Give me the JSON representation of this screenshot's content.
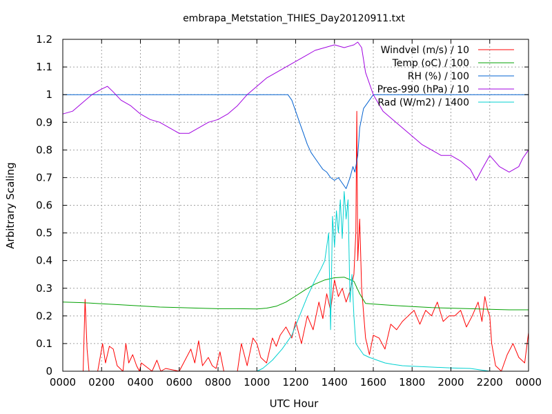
{
  "chart_data": {
    "type": "line",
    "title": "embrapa_Metstation_THIES_Day20120911.txt",
    "xlabel": "UTC Hour",
    "ylabel": "Arbitrary Scaling",
    "xlim": [
      0,
      24
    ],
    "ylim": [
      0,
      1.2
    ],
    "x_ticks": [
      {
        "v": 0,
        "label": "0000"
      },
      {
        "v": 2,
        "label": "0200"
      },
      {
        "v": 4,
        "label": "0400"
      },
      {
        "v": 6,
        "label": "0600"
      },
      {
        "v": 8,
        "label": "0800"
      },
      {
        "v": 10,
        "label": "1000"
      },
      {
        "v": 12,
        "label": "1200"
      },
      {
        "v": 14,
        "label": "1400"
      },
      {
        "v": 16,
        "label": "1600"
      },
      {
        "v": 18,
        "label": "1800"
      },
      {
        "v": 20,
        "label": "2000"
      },
      {
        "v": 22,
        "label": "2200"
      },
      {
        "v": 24,
        "label": "0000"
      }
    ],
    "y_ticks": [
      {
        "v": 0,
        "label": "0"
      },
      {
        "v": 0.1,
        "label": "0.1"
      },
      {
        "v": 0.2,
        "label": "0.2"
      },
      {
        "v": 0.3,
        "label": "0.3"
      },
      {
        "v": 0.4,
        "label": "0.4"
      },
      {
        "v": 0.5,
        "label": "0.5"
      },
      {
        "v": 0.6,
        "label": "0.6"
      },
      {
        "v": 0.7,
        "label": "0.7"
      },
      {
        "v": 0.8,
        "label": "0.8"
      },
      {
        "v": 0.9,
        "label": "0.9"
      },
      {
        "v": 1.0,
        "label": "1"
      },
      {
        "v": 1.1,
        "label": "1.1"
      },
      {
        "v": 1.2,
        "label": "1.2"
      }
    ],
    "grid": true,
    "legend_position": "top-right",
    "series": [
      {
        "name": "Windvel (m/s) / 10",
        "color": "#ff0000",
        "x": [
          0,
          1.05,
          1.15,
          1.25,
          1.35,
          1.8,
          2.05,
          2.2,
          2.4,
          2.6,
          2.8,
          3.1,
          3.25,
          3.4,
          3.6,
          3.8,
          3.95,
          4.05,
          4.6,
          4.85,
          5.05,
          5.3,
          6.0,
          6.6,
          6.8,
          7.0,
          7.2,
          7.5,
          7.7,
          7.9,
          8.1,
          8.3,
          9.0,
          9.2,
          9.5,
          9.8,
          10.0,
          10.2,
          10.5,
          10.8,
          11.0,
          11.2,
          11.5,
          11.8,
          12.0,
          12.3,
          12.6,
          12.9,
          13.2,
          13.4,
          13.6,
          13.8,
          14.0,
          14.2,
          14.4,
          14.6,
          14.8,
          15.0,
          15.1,
          15.15,
          15.2,
          15.3,
          15.4,
          15.6,
          15.8,
          16.0,
          16.3,
          16.6,
          16.9,
          17.2,
          17.5,
          17.8,
          18.1,
          18.4,
          18.7,
          19.0,
          19.3,
          19.6,
          19.9,
          20.2,
          20.5,
          20.8,
          21.1,
          21.4,
          21.6,
          21.75,
          21.9,
          22.0,
          22.1,
          22.3,
          22.6,
          22.9,
          23.2,
          23.5,
          23.8,
          24.0
        ],
        "y": [
          0,
          0,
          0.26,
          0.08,
          0,
          0,
          0.1,
          0.03,
          0.09,
          0.08,
          0.02,
          0,
          0.1,
          0.03,
          0.06,
          0.02,
          0,
          0.03,
          0,
          0.04,
          0,
          0.01,
          0,
          0.08,
          0.03,
          0.11,
          0.02,
          0.05,
          0.02,
          0.01,
          0.07,
          0,
          0,
          0.1,
          0.02,
          0.12,
          0.1,
          0.05,
          0.03,
          0.12,
          0.09,
          0.13,
          0.16,
          0.12,
          0.18,
          0.1,
          0.2,
          0.15,
          0.25,
          0.19,
          0.28,
          0.22,
          0.33,
          0.27,
          0.3,
          0.25,
          0.29,
          0.35,
          0.5,
          0.94,
          0.4,
          0.55,
          0.3,
          0.12,
          0.06,
          0.13,
          0.12,
          0.08,
          0.17,
          0.15,
          0.18,
          0.2,
          0.22,
          0.17,
          0.22,
          0.2,
          0.25,
          0.18,
          0.2,
          0.2,
          0.22,
          0.16,
          0.2,
          0.25,
          0.18,
          0.27,
          0.22,
          0.2,
          0.1,
          0.02,
          0,
          0.06,
          0.1,
          0.05,
          0.03,
          0.14
        ]
      },
      {
        "name": "Temp (oC) / 100",
        "color": "#00a000",
        "x": [
          0,
          1,
          2,
          3,
          4,
          5,
          6,
          7,
          8,
          9,
          10,
          10.5,
          11,
          11.5,
          12,
          12.5,
          13,
          13.5,
          14,
          14.5,
          15,
          15.3,
          15.6,
          16,
          17,
          18,
          19,
          20,
          21,
          22,
          23,
          24
        ],
        "y": [
          0.25,
          0.248,
          0.244,
          0.24,
          0.236,
          0.232,
          0.23,
          0.228,
          0.226,
          0.226,
          0.225,
          0.228,
          0.235,
          0.25,
          0.272,
          0.295,
          0.315,
          0.33,
          0.338,
          0.34,
          0.325,
          0.28,
          0.245,
          0.243,
          0.238,
          0.234,
          0.23,
          0.228,
          0.226,
          0.224,
          0.222,
          0.222
        ]
      },
      {
        "name": "RH (%) / 100",
        "color": "#0060d0",
        "x": [
          0,
          11.6,
          11.8,
          12.0,
          12.2,
          12.4,
          12.6,
          12.8,
          13.0,
          13.2,
          13.4,
          13.6,
          13.8,
          14.0,
          14.2,
          14.4,
          14.6,
          14.8,
          14.95,
          15.05,
          15.2,
          15.3,
          15.5,
          15.7,
          16.0,
          24.0
        ],
        "y": [
          1.0,
          1.0,
          0.98,
          0.94,
          0.9,
          0.86,
          0.82,
          0.79,
          0.77,
          0.75,
          0.73,
          0.72,
          0.7,
          0.69,
          0.7,
          0.68,
          0.66,
          0.7,
          0.74,
          0.72,
          0.78,
          0.88,
          0.95,
          0.97,
          1.0,
          1.0
        ]
      },
      {
        "name": "Pres-990 (hPa) / 10",
        "color": "#a000e0",
        "x": [
          0,
          0.5,
          1.0,
          1.5,
          2.0,
          2.3,
          2.6,
          3.0,
          3.5,
          4.0,
          4.5,
          5.0,
          5.5,
          6.0,
          6.5,
          7.0,
          7.5,
          8.0,
          8.5,
          9.0,
          9.5,
          10.0,
          10.5,
          11.0,
          11.5,
          12.0,
          12.5,
          13.0,
          13.5,
          14.0,
          14.5,
          15.0,
          15.2,
          15.4,
          15.6,
          16.0,
          16.5,
          17.0,
          17.5,
          18.0,
          18.5,
          19.0,
          19.5,
          20.0,
          20.5,
          21.0,
          21.3,
          21.6,
          22.0,
          22.5,
          23.0,
          23.5,
          23.7,
          24.0
        ],
        "y": [
          0.93,
          0.94,
          0.97,
          1.0,
          1.02,
          1.03,
          1.01,
          0.98,
          0.96,
          0.93,
          0.91,
          0.9,
          0.88,
          0.86,
          0.86,
          0.88,
          0.9,
          0.91,
          0.93,
          0.96,
          1.0,
          1.03,
          1.06,
          1.08,
          1.1,
          1.12,
          1.14,
          1.16,
          1.17,
          1.18,
          1.17,
          1.18,
          1.19,
          1.17,
          1.08,
          1.0,
          0.94,
          0.91,
          0.88,
          0.85,
          0.82,
          0.8,
          0.78,
          0.78,
          0.76,
          0.73,
          0.69,
          0.73,
          0.78,
          0.74,
          0.72,
          0.74,
          0.77,
          0.8
        ]
      },
      {
        "name": "Rad (W/m2) / 1400",
        "color": "#00d0d0",
        "x": [
          0,
          10.0,
          10.3,
          10.8,
          11.3,
          11.8,
          12.2,
          12.6,
          13.0,
          13.3,
          13.5,
          13.7,
          13.8,
          13.9,
          14.0,
          14.1,
          14.2,
          14.3,
          14.4,
          14.5,
          14.6,
          14.7,
          14.8,
          14.9,
          15.0,
          15.1,
          15.3,
          15.5,
          15.8,
          16.2,
          16.6,
          17.0,
          17.5,
          18.0,
          19.0,
          20.0,
          21.0,
          21.5,
          22.0,
          24.0
        ],
        "y": [
          0,
          0,
          0.01,
          0.04,
          0.08,
          0.13,
          0.2,
          0.27,
          0.33,
          0.37,
          0.4,
          0.5,
          0.15,
          0.56,
          0.45,
          0.58,
          0.5,
          0.62,
          0.48,
          0.65,
          0.55,
          0.62,
          0.25,
          0.35,
          0.2,
          0.1,
          0.08,
          0.06,
          0.05,
          0.04,
          0.03,
          0.025,
          0.02,
          0.018,
          0.015,
          0.012,
          0.01,
          0.005,
          0,
          0
        ]
      }
    ]
  }
}
